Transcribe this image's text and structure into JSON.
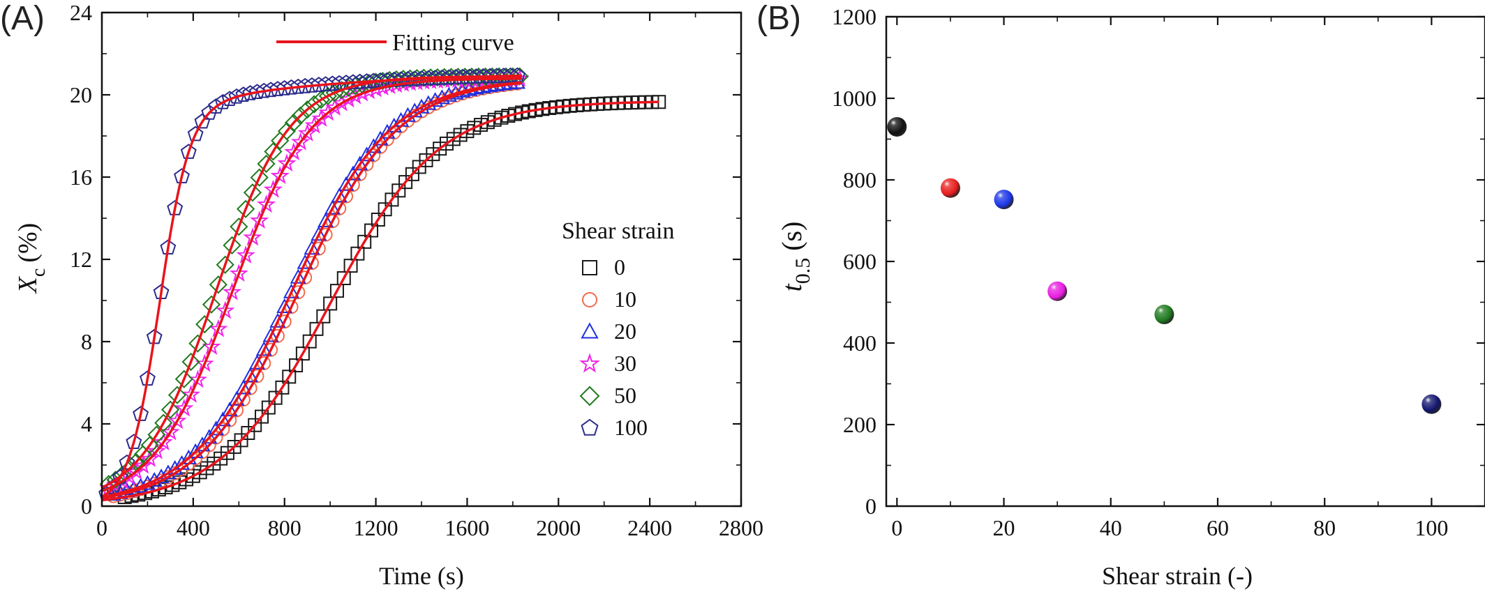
{
  "figure": {
    "panel_labels": [
      "(A)",
      "(B)"
    ]
  },
  "chart_data": [
    {
      "panel": "(A)",
      "type": "scatter",
      "xlabel": "Time (s)",
      "ylabel_main": "X",
      "ylabel_sub": "c",
      "ylabel_unit": "(%)",
      "xlim": [
        0,
        2800
      ],
      "ylim": [
        0,
        24
      ],
      "xticks": [
        0,
        400,
        800,
        1200,
        1600,
        2000,
        2400,
        2800
      ],
      "yticks": [
        0,
        4,
        8,
        12,
        16,
        20,
        24
      ],
      "legend_title": "Shear strain",
      "legend_placement": "right",
      "fit_legend_label": "Fitting curve",
      "fit_color": "#e8141c",
      "series": [
        {
          "name": "0",
          "marker": "square",
          "color": "#1a1a1a",
          "t_start": 100,
          "t_end": 2440,
          "t_half": 1000,
          "k": 0.0042,
          "xmax": 19.7
        },
        {
          "name": "10",
          "marker": "circle",
          "color": "#f26a4b",
          "t_start": 50,
          "t_end": 1840,
          "t_half": 860,
          "k": 0.0046,
          "xmax": 20.8
        },
        {
          "name": "20",
          "marker": "triangle",
          "color": "#1f2fe0",
          "t_start": 50,
          "t_end": 1840,
          "t_half": 830,
          "k": 0.0046,
          "xmax": 20.8
        },
        {
          "name": "30",
          "marker": "star",
          "color": "#f024e8",
          "t_start": 30,
          "t_end": 1840,
          "t_half": 570,
          "k": 0.0058,
          "xmax": 20.8
        },
        {
          "name": "50",
          "marker": "diamond",
          "color": "#1f7a1f",
          "t_start": 30,
          "t_end": 1840,
          "t_half": 500,
          "k": 0.0062,
          "xmax": 20.9
        },
        {
          "name": "100",
          "marker": "pentagon",
          "color": "#2b2b8c",
          "t_start": 20,
          "t_end": 1840,
          "t_half": 250,
          "k": 0.015,
          "xmax": 19.3,
          "k2": 0.0015,
          "ramp": 1.8
        }
      ]
    },
    {
      "panel": "(B)",
      "type": "scatter",
      "xlabel": "Shear strain (-)",
      "ylabel_main": "t",
      "ylabel_sub": "0.5",
      "ylabel_unit": "(s)",
      "xlim": [
        -2,
        110
      ],
      "ylim": [
        0,
        1200
      ],
      "xticks": [
        0,
        20,
        40,
        60,
        80,
        100
      ],
      "yticks": [
        0,
        200,
        400,
        600,
        800,
        1000,
        1200
      ],
      "points": [
        {
          "x": 0,
          "y": 930,
          "color": "#111111"
        },
        {
          "x": 10,
          "y": 780,
          "color": "#e81c1c"
        },
        {
          "x": 20,
          "y": 752,
          "color": "#1c36e8"
        },
        {
          "x": 30,
          "y": 527,
          "color": "#e81ce0"
        },
        {
          "x": 50,
          "y": 470,
          "color": "#1f7a1f"
        },
        {
          "x": 100,
          "y": 250,
          "color": "#12156e"
        }
      ]
    }
  ]
}
